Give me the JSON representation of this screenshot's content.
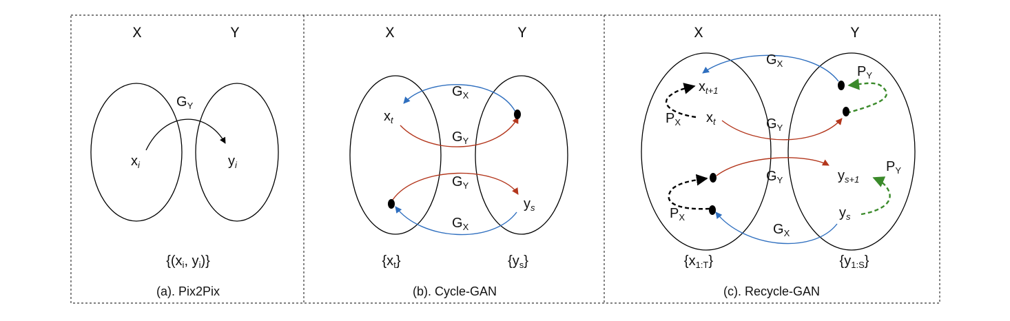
{
  "panels": [
    {
      "caption": "(a). Pix2Pix",
      "domain_x": "X",
      "domain_y": "Y",
      "gen_y": {
        "main": "G",
        "sub": "Y"
      },
      "node_x": {
        "main": "x",
        "sub": "i"
      },
      "node_y": {
        "main": "y",
        "sub": "i"
      },
      "pairs": {
        "open": "{(x",
        "sub1": "i",
        "mid": ", y",
        "sub2": "i",
        "close": ")}"
      }
    },
    {
      "caption": "(b). Cycle-GAN",
      "domain_x": "X",
      "domain_y": "Y",
      "gen_x_top": {
        "main": "G",
        "sub": "X"
      },
      "gen_y_top": {
        "main": "G",
        "sub": "Y"
      },
      "gen_y_bottom": {
        "main": "G",
        "sub": "Y"
      },
      "gen_x_bottom": {
        "main": "G",
        "sub": "X"
      },
      "node_xt": {
        "main": "x",
        "sub": "t"
      },
      "node_ys": {
        "main": "y",
        "sub": "s"
      },
      "set_x": {
        "open": "{x",
        "sub": "t",
        "close": "}"
      },
      "set_y": {
        "open": "{y",
        "sub": "s",
        "close": "}"
      }
    },
    {
      "caption": "(c). Recycle-GAN",
      "domain_x": "X",
      "domain_y": "Y",
      "gen_x_top": {
        "main": "G",
        "sub": "X"
      },
      "gen_y_top": {
        "main": "G",
        "sub": "Y"
      },
      "gen_y_bottom": {
        "main": "G",
        "sub": "Y"
      },
      "gen_x_bottom": {
        "main": "G",
        "sub": "X"
      },
      "pred_y_top": {
        "main": "P",
        "sub": "Y"
      },
      "pred_x_top": {
        "main": "P",
        "sub": "X"
      },
      "pred_y_bottom": {
        "main": "P",
        "sub": "Y"
      },
      "pred_x_bottom": {
        "main": "P",
        "sub": "X"
      },
      "node_xt1": {
        "main": "x",
        "sub": "t+1"
      },
      "node_xt": {
        "main": "x",
        "sub": "t"
      },
      "node_ys1": {
        "main": "y",
        "sub": "s+1"
      },
      "node_ys": {
        "main": "y",
        "sub": "s"
      },
      "set_x": {
        "open": "{x",
        "sub": "1:T",
        "close": "}"
      },
      "set_y": {
        "open": "{y",
        "sub": "1:S",
        "close": "}"
      }
    }
  ],
  "colors": {
    "generator_x": "#2f6fbf",
    "generator_y": "#b3361c",
    "predictor_y": "#3a8a2a",
    "predictor_x": "#000000"
  }
}
